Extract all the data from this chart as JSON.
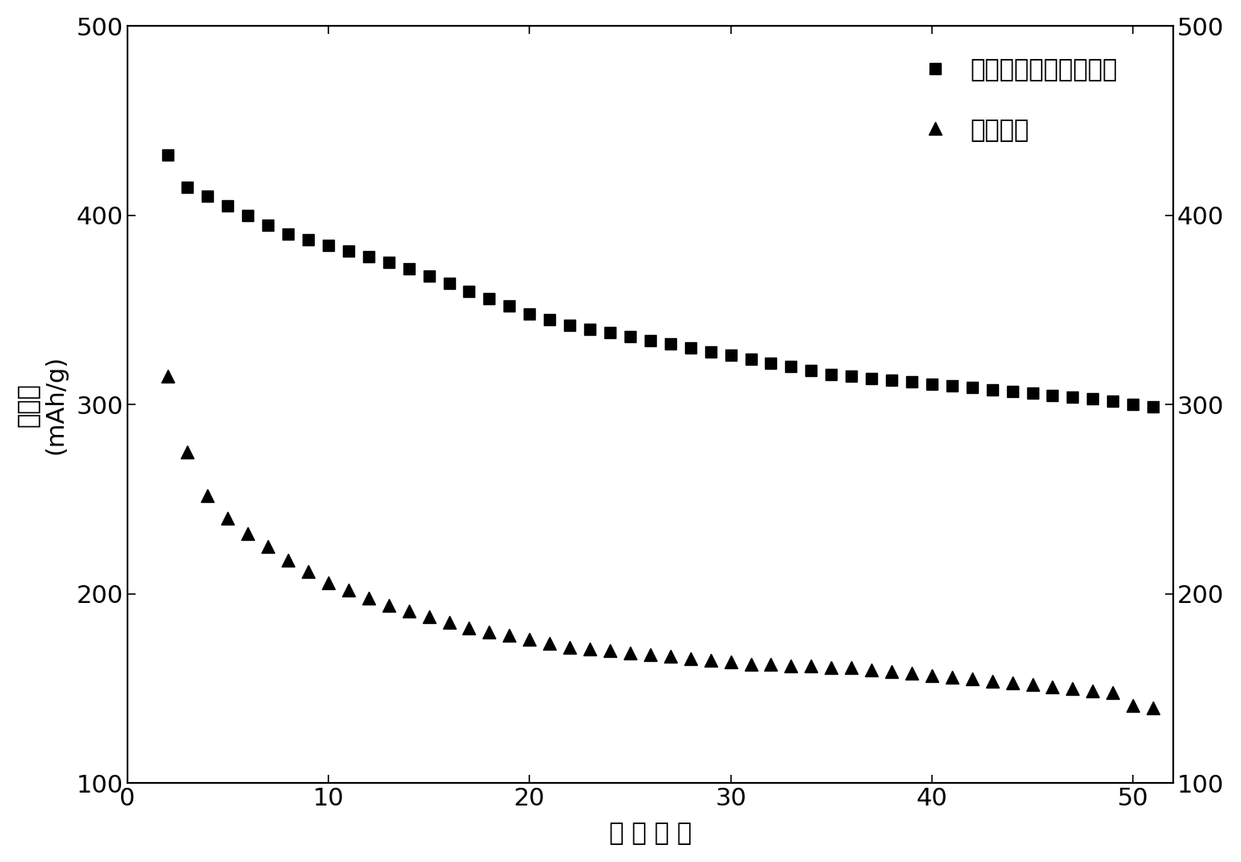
{
  "square_x": [
    2,
    3,
    4,
    5,
    6,
    7,
    8,
    9,
    10,
    11,
    12,
    13,
    14,
    15,
    16,
    17,
    18,
    19,
    20,
    21,
    22,
    23,
    24,
    25,
    26,
    27,
    28,
    29,
    30,
    31,
    32,
    33,
    34,
    35,
    36,
    37,
    38,
    39,
    40,
    41,
    42,
    43,
    44,
    45,
    46,
    47,
    48,
    49,
    50,
    51
  ],
  "square_y": [
    432,
    415,
    410,
    405,
    400,
    395,
    390,
    387,
    384,
    381,
    378,
    375,
    372,
    368,
    364,
    360,
    356,
    352,
    348,
    345,
    342,
    340,
    338,
    336,
    334,
    332,
    330,
    328,
    326,
    324,
    322,
    320,
    318,
    316,
    315,
    314,
    313,
    312,
    311,
    310,
    309,
    308,
    307,
    306,
    305,
    304,
    303,
    302,
    300,
    299
  ],
  "triangle_x": [
    2,
    3,
    4,
    5,
    6,
    7,
    8,
    9,
    10,
    11,
    12,
    13,
    14,
    15,
    16,
    17,
    18,
    19,
    20,
    21,
    22,
    23,
    24,
    25,
    26,
    27,
    28,
    29,
    30,
    31,
    32,
    33,
    34,
    35,
    36,
    37,
    38,
    39,
    40,
    41,
    42,
    43,
    44,
    45,
    46,
    47,
    48,
    49,
    50,
    51
  ],
  "triangle_y": [
    315,
    275,
    252,
    240,
    232,
    225,
    218,
    212,
    206,
    202,
    198,
    194,
    191,
    188,
    185,
    182,
    180,
    178,
    176,
    174,
    172,
    171,
    170,
    169,
    168,
    167,
    166,
    165,
    164,
    163,
    163,
    162,
    162,
    161,
    161,
    160,
    159,
    158,
    157,
    156,
    155,
    154,
    153,
    152,
    151,
    150,
    149,
    148,
    141,
    140
  ],
  "legend_square": "本发明方法改性处理后",
  "legend_triangle": "原始样品",
  "ylabel_line1": "比容量",
  "ylabel_line2": "(mAh/g)",
  "xlabel": "循 环 次 数",
  "ylim": [
    100,
    500
  ],
  "xlim": [
    0,
    52
  ],
  "yticks": [
    100,
    200,
    300,
    400,
    500
  ],
  "xticks": [
    0,
    10,
    20,
    30,
    40,
    50
  ],
  "background_color": "#ffffff",
  "marker_color": "#000000",
  "marker_size_square": 10,
  "marker_size_triangle": 11
}
